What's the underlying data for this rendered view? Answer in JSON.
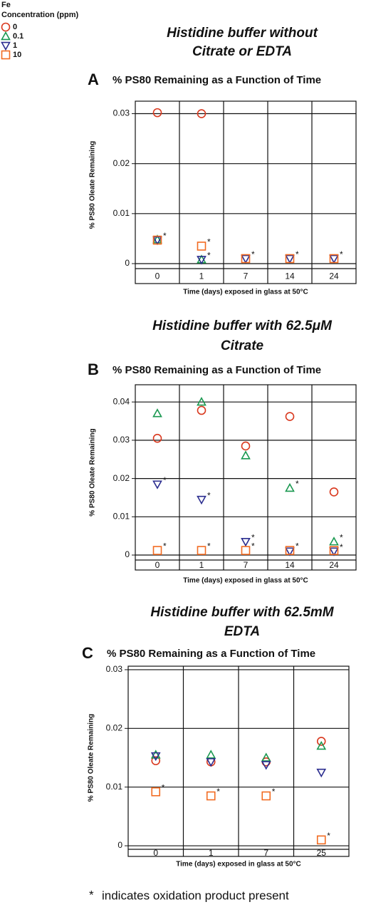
{
  "legend": {
    "title": [
      "Fe",
      "Concentration (ppm)"
    ]
  },
  "footnote": {
    "symbol": "*",
    "text": "indicates oxidation product present"
  },
  "chart_data": [
    {
      "type": "scatter",
      "panel_label": "A",
      "title": [
        "Histidine buffer without",
        "Citrate or EDTA"
      ],
      "subtitle": "% PS80 Remaining as a Function of Time",
      "x_label": "Time (days) exposed in glass at 50°C",
      "y_label": "% PS80 Oleate Remaining",
      "categories": [
        "0",
        "1",
        "7",
        "14",
        "24"
      ],
      "ylim": [
        -0.001,
        0.0325
      ],
      "yticks": [
        0,
        0.01,
        0.02,
        0.03
      ],
      "grid": true,
      "series": [
        {
          "name": "0",
          "color": "#d9381e",
          "marker": "circle",
          "values": [
            0.0302,
            0.03,
            null,
            null,
            null
          ],
          "oxidation": [
            false,
            false,
            false,
            false,
            false
          ]
        },
        {
          "name": "0.1",
          "color": "#1a9850",
          "marker": "triangle",
          "values": [
            0.0048,
            0.0008,
            null,
            null,
            null
          ],
          "oxidation": [
            false,
            false,
            false,
            false,
            false
          ]
        },
        {
          "name": "1",
          "color": "#2b2d8f",
          "marker": "triangle-down",
          "values": [
            0.0047,
            0.0008,
            0.001,
            0.001,
            0.001
          ],
          "oxidation": [
            false,
            true,
            false,
            false,
            false
          ]
        },
        {
          "name": "10",
          "color": "#f26b21",
          "marker": "square",
          "values": [
            0.0047,
            0.0035,
            0.001,
            0.001,
            0.001
          ],
          "oxidation": [
            true,
            true,
            true,
            true,
            true
          ]
        }
      ]
    },
    {
      "type": "scatter",
      "panel_label": "B",
      "title": [
        "Histidine buffer with 62.5μM",
        "Citrate"
      ],
      "subtitle": "% PS80 Remaining as a Function of Time",
      "x_label": "Time (days) exposed in glass at 50°C",
      "y_label": "% PS80 Oleate Remaining",
      "categories": [
        "0",
        "1",
        "7",
        "14",
        "24"
      ],
      "ylim": [
        -0.0013,
        0.0445
      ],
      "yticks": [
        0,
        0.01,
        0.02,
        0.03,
        0.04
      ],
      "grid": true,
      "series": [
        {
          "name": "0",
          "color": "#d9381e",
          "marker": "circle",
          "values": [
            0.0305,
            0.0378,
            0.0285,
            0.0362,
            0.0165
          ],
          "oxidation": [
            false,
            false,
            false,
            false,
            false
          ]
        },
        {
          "name": "0.1",
          "color": "#1a9850",
          "marker": "triangle",
          "values": [
            0.037,
            0.04,
            0.026,
            0.0175,
            0.0035
          ],
          "oxidation": [
            false,
            false,
            false,
            true,
            true
          ]
        },
        {
          "name": "1",
          "color": "#2b2d8f",
          "marker": "triangle-down",
          "values": [
            0.0185,
            0.0145,
            0.0035,
            0.001,
            0.001
          ],
          "oxidation": [
            true,
            true,
            true,
            false,
            true
          ]
        },
        {
          "name": "10",
          "color": "#f26b21",
          "marker": "square",
          "values": [
            0.0012,
            0.0012,
            0.0012,
            0.0012,
            0.0012
          ],
          "oxidation": [
            true,
            true,
            true,
            true,
            false
          ]
        }
      ]
    },
    {
      "type": "scatter",
      "panel_label": "C",
      "title": [
        "Histidine buffer with 62.5mM",
        "EDTA"
      ],
      "subtitle": "% PS80 Remaining as a Function of Time",
      "x_label": "Time (days) exposed in glass at 50°C",
      "y_label": "% PS80 Oleate Remaining",
      "categories": [
        "0",
        "1",
        "7",
        "25"
      ],
      "ylim": [
        -0.0006,
        0.0306
      ],
      "yticks": [
        0,
        0.01,
        0.02,
        0.03
      ],
      "grid": true,
      "series": [
        {
          "name": "0",
          "color": "#d9381e",
          "marker": "circle",
          "values": [
            0.0145,
            0.0143,
            0.0143,
            0.0178
          ],
          "oxidation": [
            false,
            false,
            false,
            false
          ]
        },
        {
          "name": "0.1",
          "color": "#1a9850",
          "marker": "triangle",
          "values": [
            0.0155,
            0.0155,
            0.015,
            0.017
          ],
          "oxidation": [
            false,
            false,
            false,
            false
          ]
        },
        {
          "name": "1",
          "color": "#2b2d8f",
          "marker": "triangle-down",
          "values": [
            0.0153,
            0.0143,
            0.0138,
            0.0125
          ],
          "oxidation": [
            false,
            false,
            false,
            false
          ]
        },
        {
          "name": "10",
          "color": "#f26b21",
          "marker": "square",
          "values": [
            0.0092,
            0.0085,
            0.0085,
            0.001
          ],
          "oxidation": [
            true,
            true,
            true,
            true
          ]
        }
      ]
    }
  ]
}
